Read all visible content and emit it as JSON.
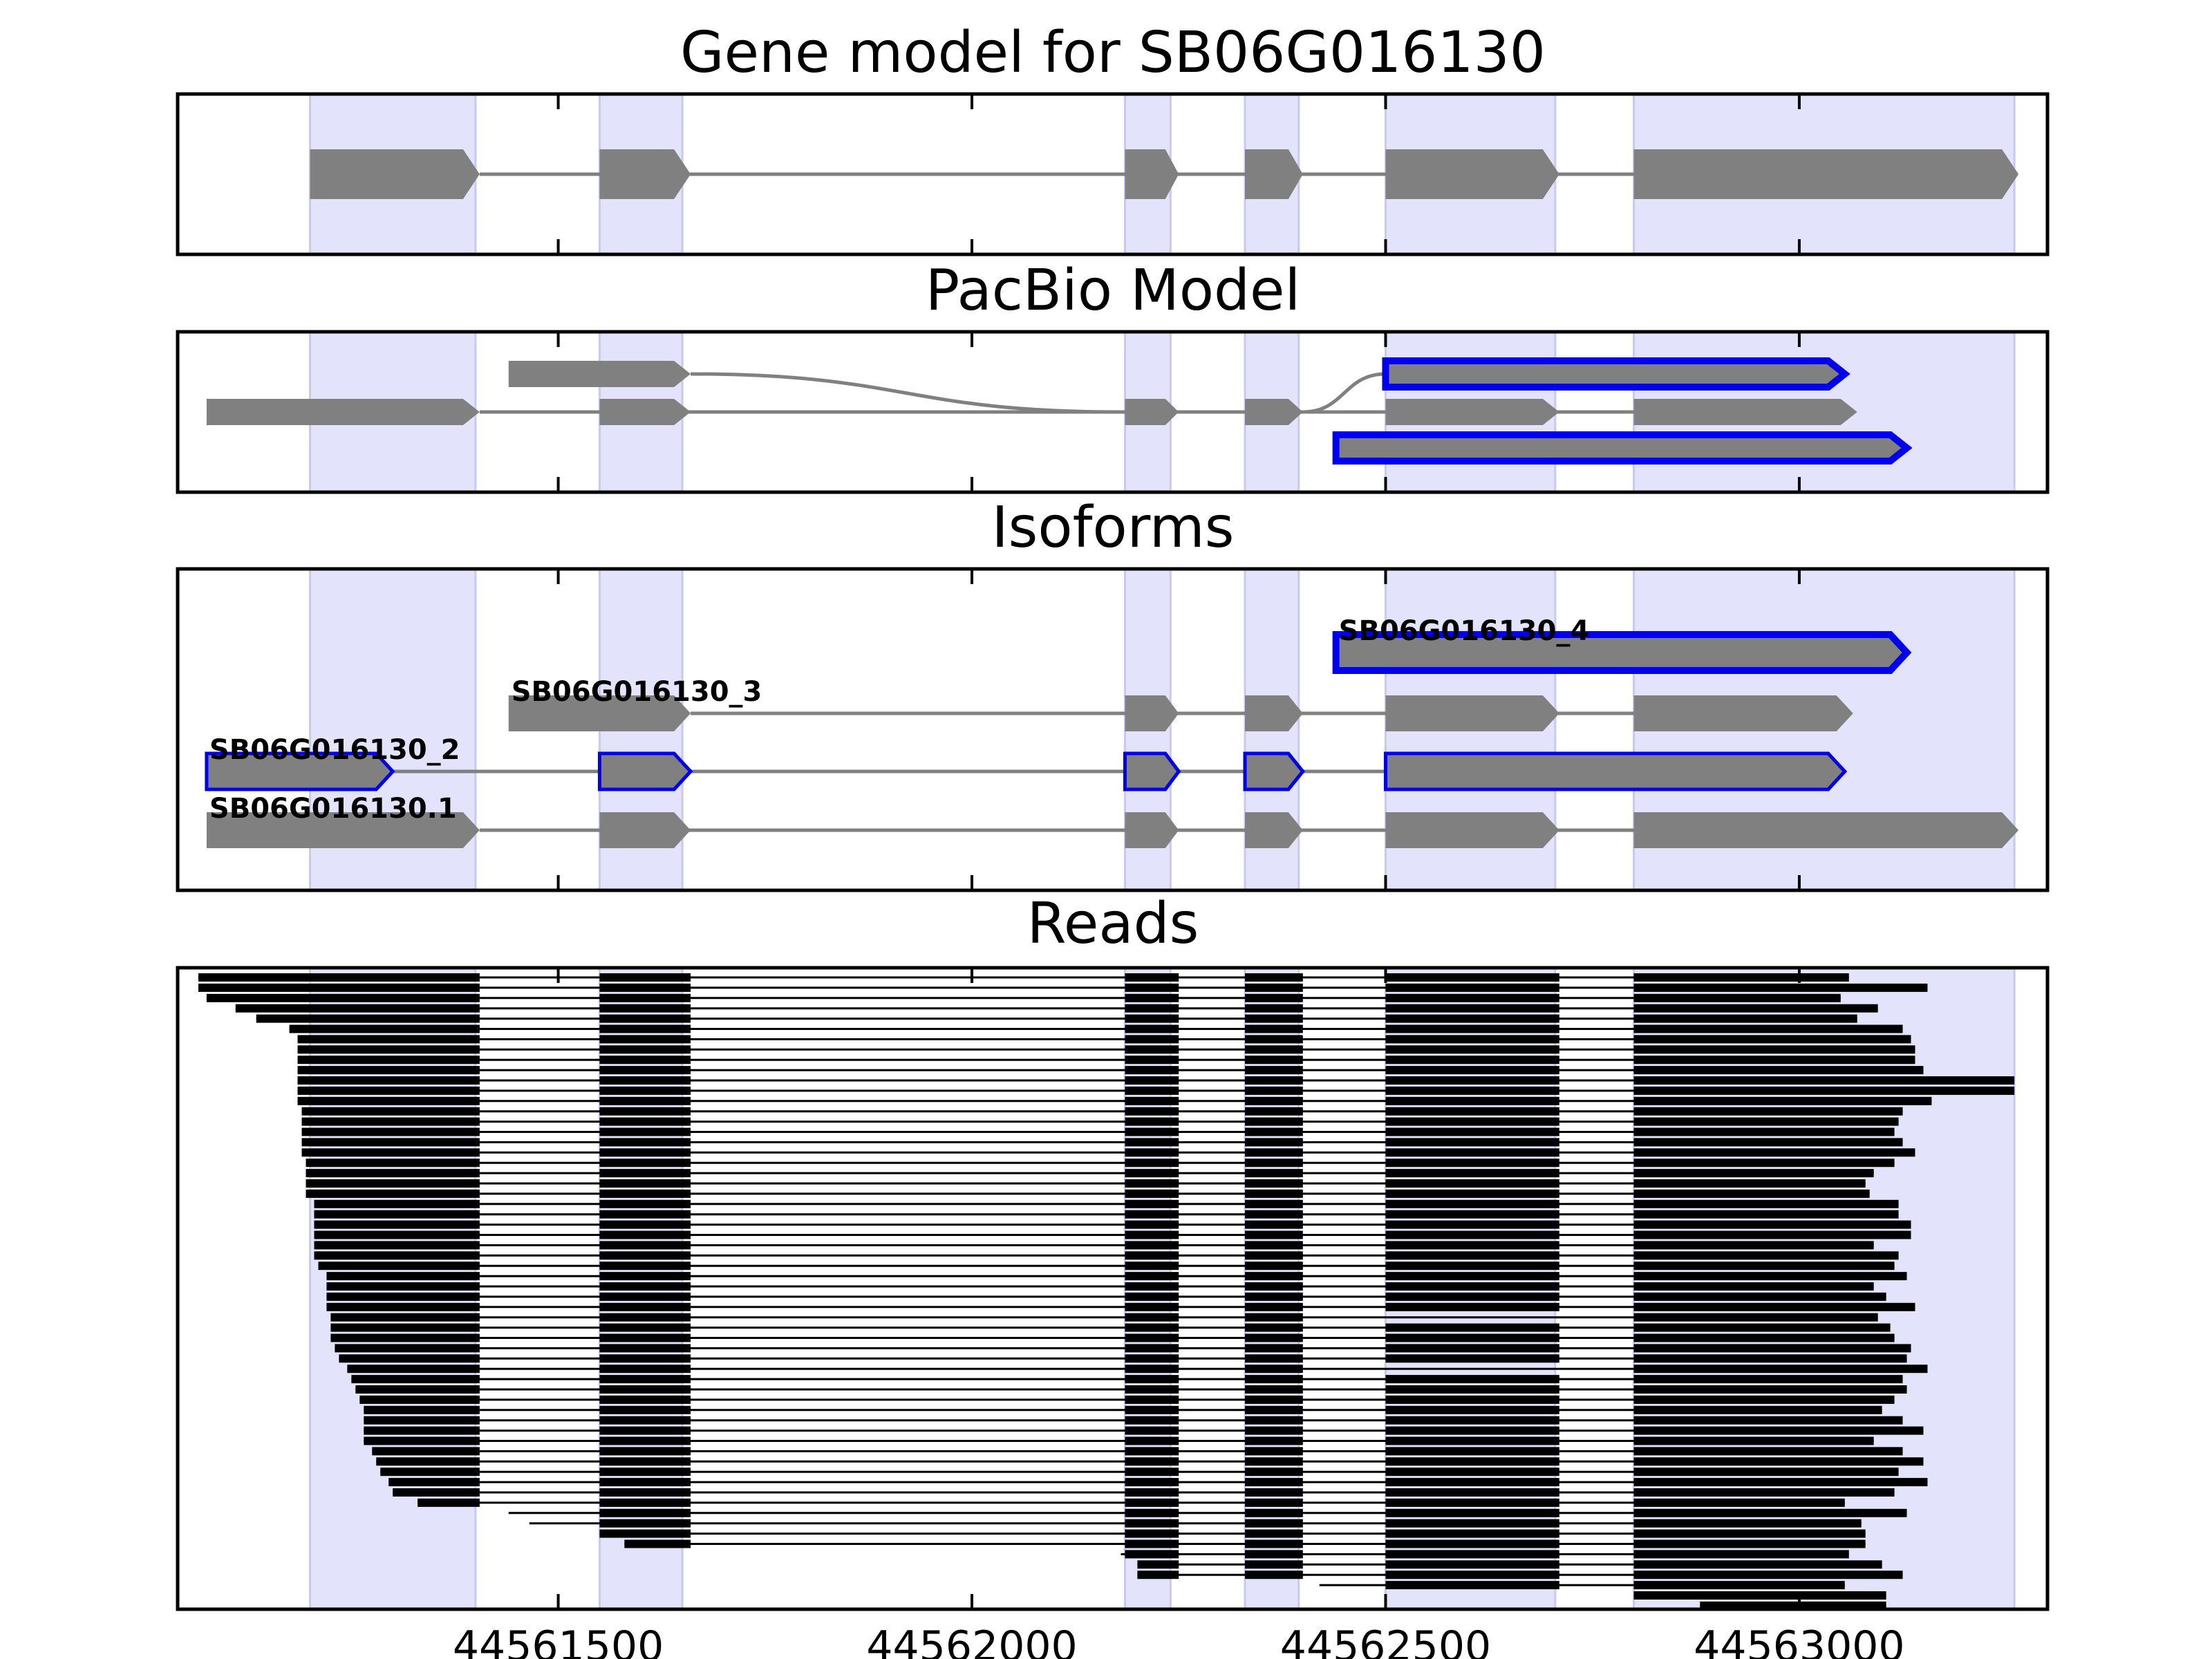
{
  "chart_data": {
    "type": "gene-structure",
    "xlim": [
      44561040,
      44563300
    ],
    "x_ticks": [
      44561500,
      44562000,
      44562500,
      44563000
    ],
    "x_tick_labels": [
      "44561500",
      "44562000",
      "44562500",
      "44563000"
    ],
    "colors": {
      "exon_fill": "#808080",
      "intron_line": "#808080",
      "highlight_band": "#e3e3fb",
      "outline_highlight": "#0000ee",
      "read": "#000000"
    },
    "exon_bands": [
      [
        44561200,
        44561400
      ],
      [
        44561550,
        44561650
      ],
      [
        44562185,
        44562240
      ],
      [
        44562330,
        44562395
      ],
      [
        44562500,
        44562705
      ],
      [
        44562800,
        44563260
      ]
    ],
    "panels": [
      {
        "title": "Gene model for SB06G016130",
        "rows": 1,
        "models": [
          {
            "row": 0,
            "outline": "none",
            "exons": [
              [
                44561200,
                44561405
              ],
              [
                44561550,
                44561660
              ],
              [
                44562185,
                44562250
              ],
              [
                44562330,
                44562400
              ],
              [
                44562500,
                44562710
              ],
              [
                44562800,
                44563265
              ]
            ]
          }
        ]
      },
      {
        "title": "PacBio Model",
        "rows": 3,
        "models": [
          {
            "row": 0,
            "outline": "thick",
            "exons": [
              [
                44562500,
                44563055
              ]
            ]
          },
          {
            "row": 0,
            "outline": "none",
            "connect_to_row": 1,
            "exons": [
              [
                44561440,
                44561660
              ]
            ]
          },
          {
            "row": 1,
            "outline": "none",
            "exons": [
              [
                44561075,
                44561405
              ],
              [
                44561550,
                44561660
              ],
              [
                44562185,
                44562250
              ],
              [
                44562330,
                44562400
              ],
              [
                44562500,
                44562710
              ],
              [
                44562800,
                44563070
              ]
            ]
          },
          {
            "row": 2,
            "outline": "thick",
            "exons": [
              [
                44562440,
                44563130
              ]
            ]
          }
        ],
        "links": [
          {
            "from_row": 0,
            "from_pos": 44561660,
            "to_row": 1,
            "to_pos": 44562180
          },
          {
            "from_row": 1,
            "from_pos": 44562400,
            "to_row": 0,
            "to_pos": 44562500
          }
        ]
      },
      {
        "title": "Isoforms",
        "rows": 4,
        "models": [
          {
            "row": 0,
            "name": "SB06G016130_4",
            "outline": "thick",
            "exons": [
              [
                44562440,
                44563130
              ]
            ]
          },
          {
            "row": 1,
            "name": "SB06G016130_3",
            "outline": "none",
            "exons": [
              [
                44561440,
                44561660
              ],
              [
                44562185,
                44562250
              ],
              [
                44562330,
                44562400
              ],
              [
                44562500,
                44562710
              ],
              [
                44562800,
                44563065
              ]
            ]
          },
          {
            "row": 2,
            "name": "SB06G016130_2",
            "outline": "thin",
            "exons": [
              [
                44561075,
                44561300
              ],
              [
                44561550,
                44561660
              ],
              [
                44562185,
                44562250
              ],
              [
                44562330,
                44562400
              ],
              [
                44562500,
                44563055
              ]
            ]
          },
          {
            "row": 3,
            "name": "SB06G016130.1",
            "outline": "none",
            "exons": [
              [
                44561075,
                44561405
              ],
              [
                44561550,
                44561660
              ],
              [
                44562185,
                44562250
              ],
              [
                44562330,
                44562400
              ],
              [
                44562500,
                44562710
              ],
              [
                44562800,
                44563265
              ]
            ]
          }
        ]
      },
      {
        "title": "Reads",
        "reads": {
          "count": 62,
          "core_exons": [
            [
              44561550,
              44561655
            ],
            [
              44562185,
              44562245
            ],
            [
              44562330,
              44562395
            ],
            [
              44562500,
              44562710
            ],
            [
              44562800,
              44562800
            ]
          ],
          "starts": [
            44561065,
            44561065,
            44561075,
            44561110,
            44561135,
            44561175,
            44561185,
            44561185,
            44561185,
            44561185,
            44561185,
            44561185,
            44561185,
            44561190,
            44561190,
            44561190,
            44561190,
            44561190,
            44561195,
            44561195,
            44561195,
            44561195,
            44561205,
            44561205,
            44561205,
            44561205,
            44561205,
            44561205,
            44561210,
            44561220,
            44561220,
            44561220,
            44561220,
            44561225,
            44561225,
            44561225,
            44561230,
            44561235,
            44561245,
            44561250,
            44561255,
            44561260,
            44561265,
            44561265,
            44561265,
            44561265,
            44561275,
            44561280,
            44561285,
            44561295,
            44561300,
            44561330,
            44561440,
            44561465,
            44561550,
            44561580,
            44562180,
            44562200,
            44562200,
            44562420,
            44562800,
            44562880
          ],
          "ends": [
            44563060,
            44563155,
            44563050,
            44563095,
            44563070,
            44563125,
            44563135,
            44563140,
            44563140,
            44563150,
            44563260,
            44563260,
            44563160,
            44563125,
            44563120,
            44563115,
            44563125,
            44563140,
            44563115,
            44563090,
            44563080,
            44563085,
            44563120,
            44563120,
            44563135,
            44563135,
            44563090,
            44563120,
            44563115,
            44563130,
            44563090,
            44563105,
            44563140,
            44563095,
            44563110,
            44563115,
            44563135,
            44563130,
            44563155,
            44563125,
            44563130,
            44563115,
            44563100,
            44563125,
            44563150,
            44563090,
            44563125,
            44563150,
            44563120,
            44563155,
            44563115,
            44563055,
            44563130,
            44563075,
            44563080,
            44563080,
            44563060,
            44563100,
            44563125,
            44563055,
            44563105,
            44563105
          ],
          "skip_long_exon": [
            33,
            38
          ]
        }
      }
    ]
  }
}
